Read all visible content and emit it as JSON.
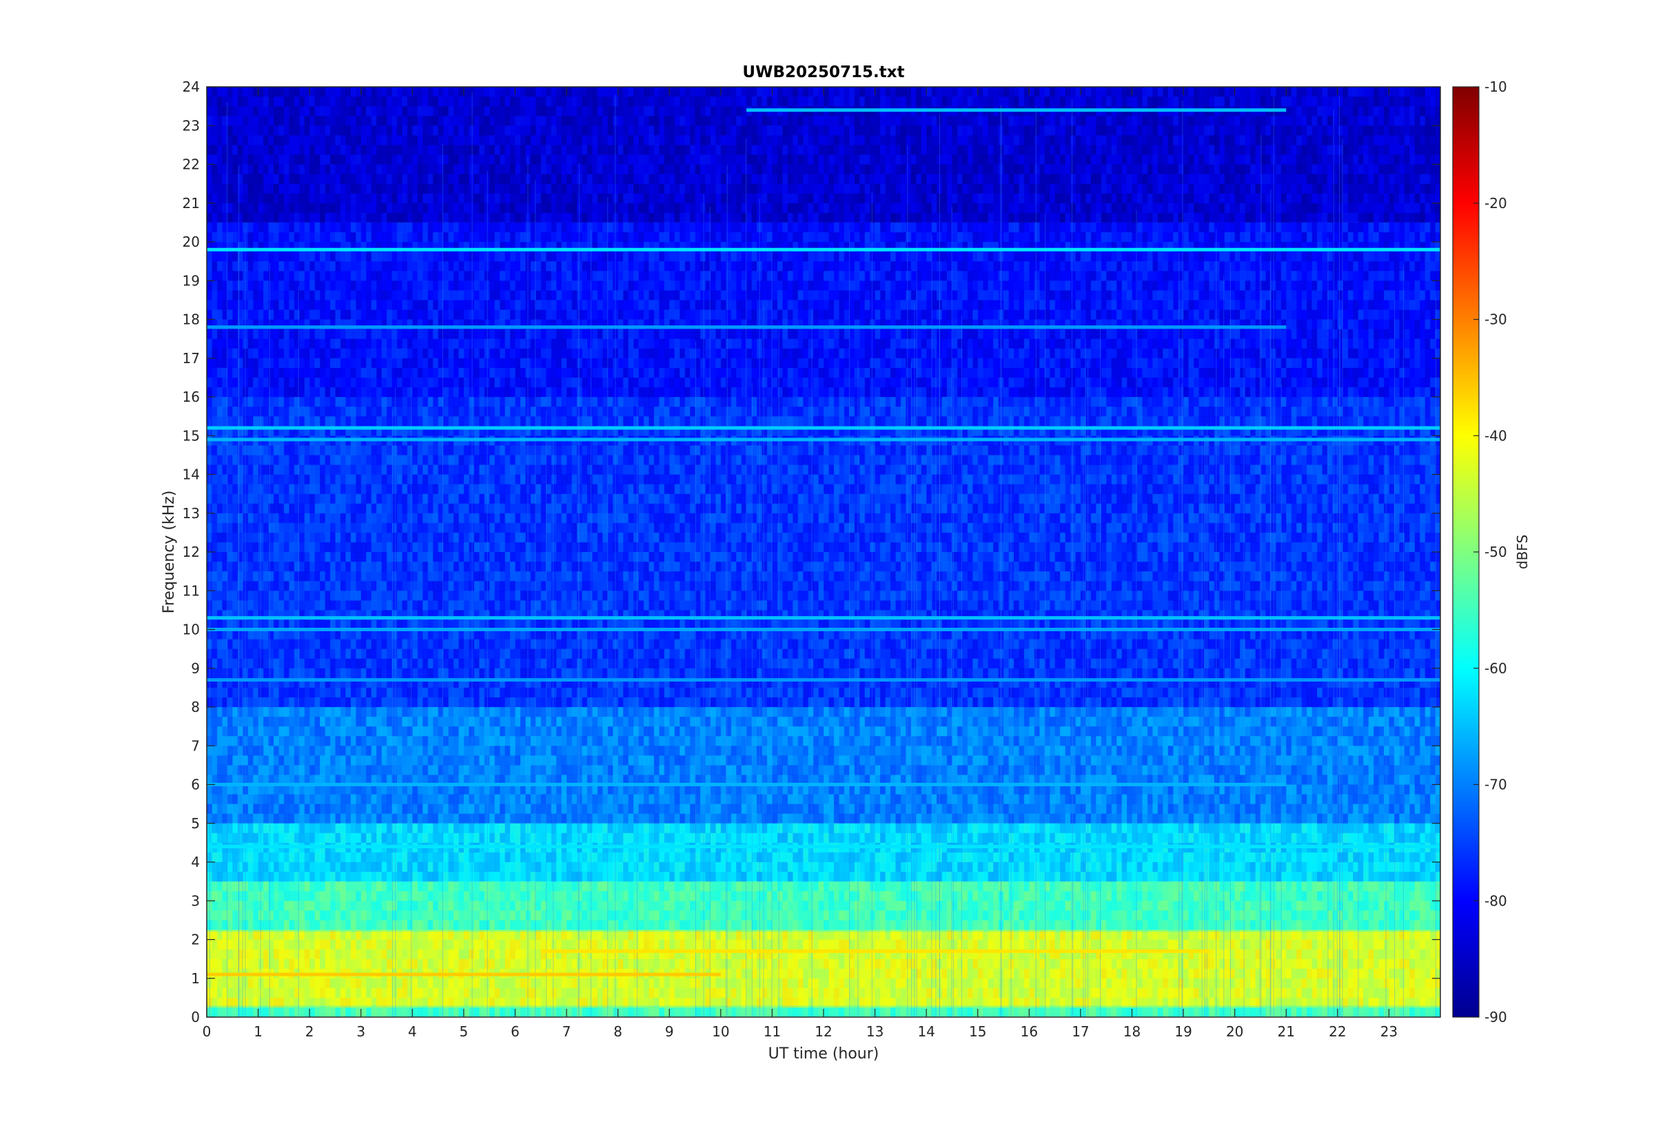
{
  "chart_data": {
    "type": "heatmap",
    "title": "UWB20250715.txt",
    "xlabel": "UT time (hour)",
    "ylabel": "Frequency (kHz)",
    "xlim": [
      0,
      24
    ],
    "ylim": [
      0,
      24
    ],
    "x_ticks": [
      "0",
      "1",
      "2",
      "3",
      "4",
      "5",
      "6",
      "7",
      "8",
      "9",
      "10",
      "11",
      "12",
      "13",
      "14",
      "15",
      "16",
      "17",
      "18",
      "19",
      "20",
      "21",
      "22",
      "23"
    ],
    "y_ticks": [
      "0",
      "1",
      "2",
      "3",
      "4",
      "5",
      "6",
      "7",
      "8",
      "9",
      "10",
      "11",
      "12",
      "13",
      "14",
      "15",
      "16",
      "17",
      "18",
      "19",
      "20",
      "21",
      "22",
      "23",
      "24"
    ],
    "colorbar": {
      "label": "dBFS",
      "colormap": "jet",
      "range": [
        -90,
        -10
      ],
      "ticks": [
        "-10",
        "-20",
        "-30",
        "-40",
        "-50",
        "-60",
        "-70",
        "-80",
        "-90"
      ]
    },
    "background_dbfs": [
      {
        "freq_khz": [
          0,
          0.3
        ],
        "dbfs": -55
      },
      {
        "freq_khz": [
          0.3,
          2.2
        ],
        "dbfs": -43
      },
      {
        "freq_khz": [
          2.2,
          3.5
        ],
        "dbfs": -55
      },
      {
        "freq_khz": [
          3.5,
          5
        ],
        "dbfs": -63
      },
      {
        "freq_khz": [
          5,
          8
        ],
        "dbfs": -70
      },
      {
        "freq_khz": [
          8,
          16
        ],
        "dbfs": -76
      },
      {
        "freq_khz": [
          16,
          20.5
        ],
        "dbfs": -79
      },
      {
        "freq_khz": [
          20.5,
          24
        ],
        "dbfs": -84
      }
    ],
    "tone_lines": [
      {
        "freq_khz": 19.8,
        "start_hour": 0,
        "end_hour": 24,
        "dbfs": -62
      },
      {
        "freq_khz": 23.4,
        "start_hour": 10.5,
        "end_hour": 21,
        "dbfs": -65
      },
      {
        "freq_khz": 17.8,
        "start_hour": 0,
        "end_hour": 21,
        "dbfs": -68
      },
      {
        "freq_khz": 15.2,
        "start_hour": 0,
        "end_hour": 24,
        "dbfs": -64
      },
      {
        "freq_khz": 14.9,
        "start_hour": 0,
        "end_hour": 24,
        "dbfs": -66
      },
      {
        "freq_khz": 10.3,
        "start_hour": 0,
        "end_hour": 24,
        "dbfs": -65
      },
      {
        "freq_khz": 10.0,
        "start_hour": 0,
        "end_hour": 24,
        "dbfs": -67
      },
      {
        "freq_khz": 8.7,
        "start_hour": 0,
        "end_hour": 24,
        "dbfs": -68
      },
      {
        "freq_khz": 6.0,
        "start_hour": 0,
        "end_hour": 21,
        "dbfs": -66
      },
      {
        "freq_khz": 4.4,
        "start_hour": 0,
        "end_hour": 24,
        "dbfs": -62
      },
      {
        "freq_khz": 1.1,
        "start_hour": 0,
        "end_hour": 10,
        "dbfs": -36
      },
      {
        "freq_khz": 1.7,
        "start_hour": 6.5,
        "end_hour": 19.5,
        "dbfs": -38
      }
    ]
  }
}
